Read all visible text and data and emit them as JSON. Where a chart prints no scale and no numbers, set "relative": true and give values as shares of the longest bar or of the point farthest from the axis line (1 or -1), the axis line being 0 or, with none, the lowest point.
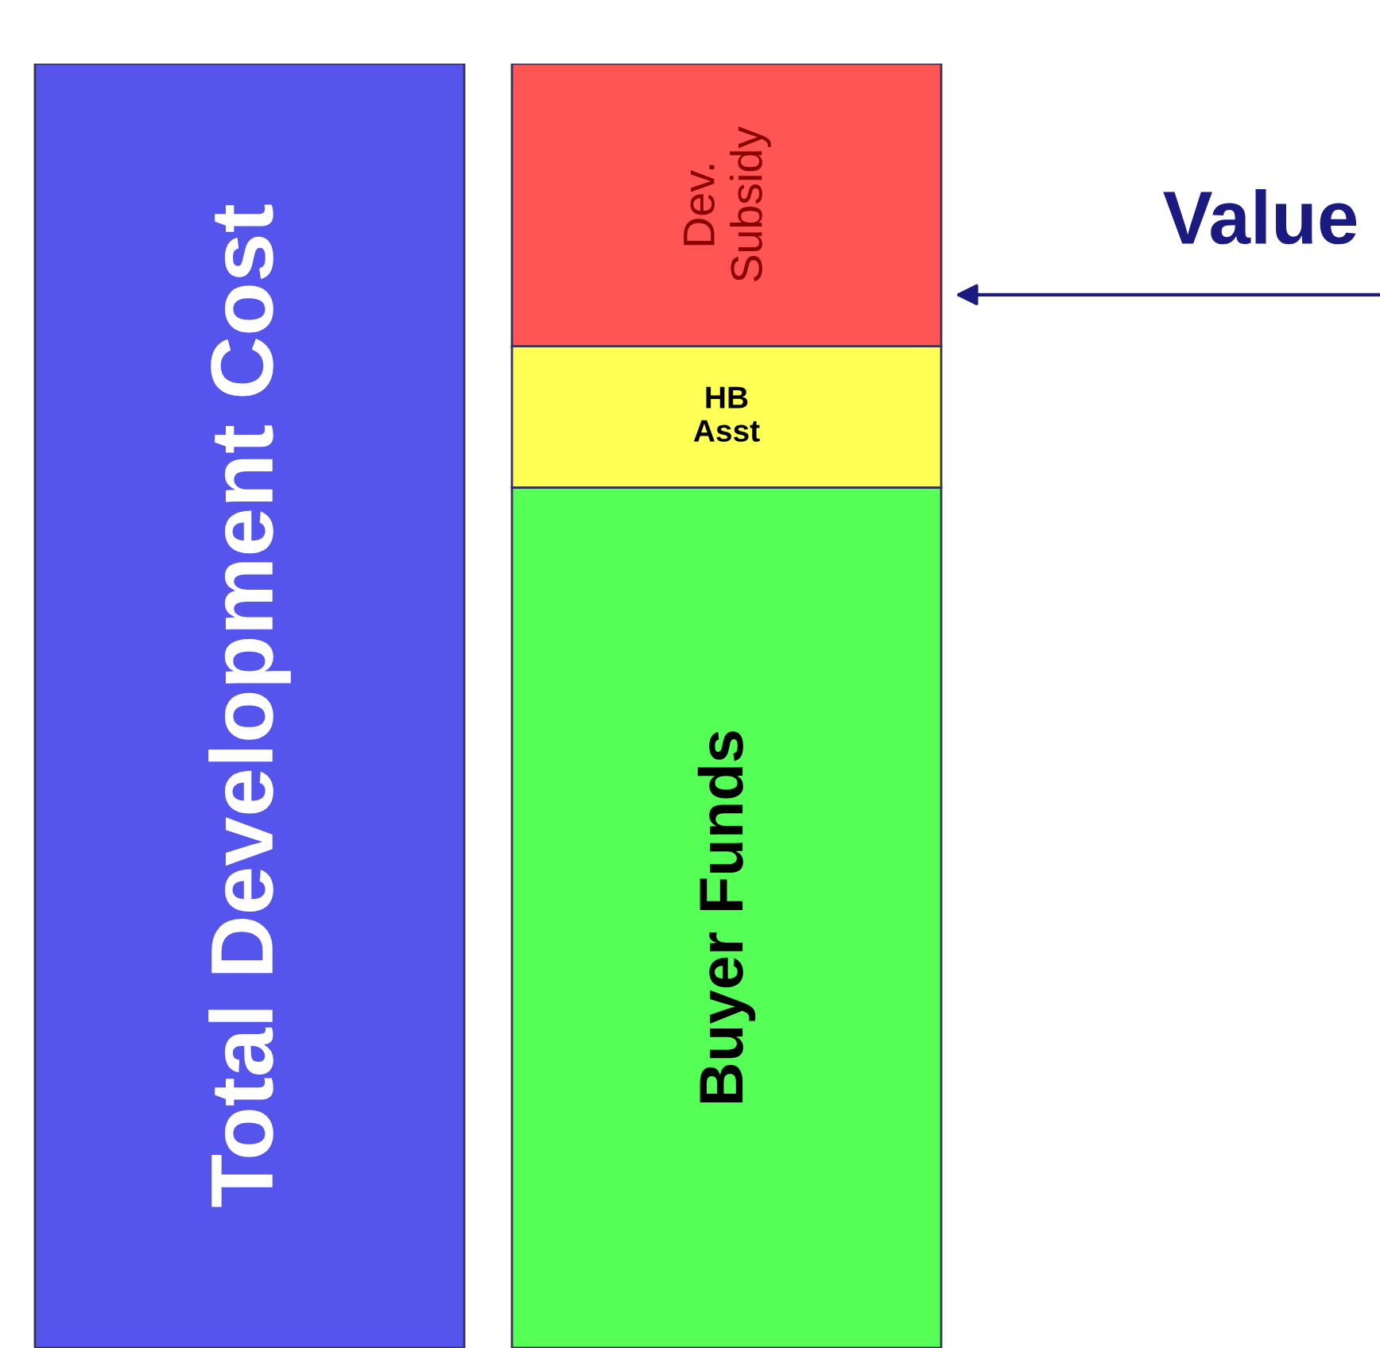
{
  "chart_data": {
    "type": "bar",
    "relative": true,
    "stacked": true,
    "legend": false,
    "categories": [
      null,
      null
    ],
    "series": [
      {
        "name": "Total Development Cost",
        "color": "#5555ee",
        "values": [
          1,
          null
        ]
      },
      {
        "name": "Buyer Funds",
        "color": "#55ff55",
        "values": [
          null,
          0.67
        ]
      },
      {
        "name": "HB Asst",
        "color": "#ffff55",
        "values": [
          null,
          0.11
        ]
      },
      {
        "name": "Dev. Subsidy",
        "color": "#ff5555",
        "values": [
          null,
          0.22
        ]
      }
    ],
    "annotations": [
      "Value"
    ]
  }
}
